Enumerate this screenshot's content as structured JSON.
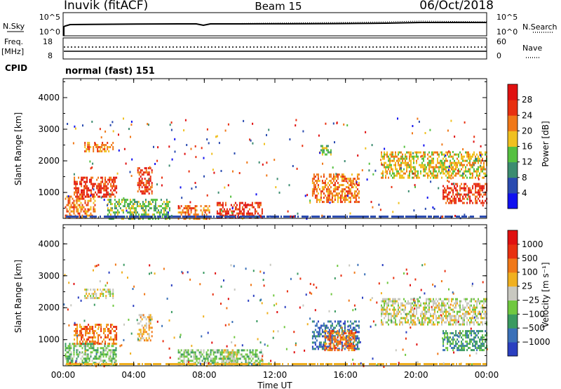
{
  "header": {
    "station": "Inuvik (fitACF)",
    "beam": "Beam 15",
    "date": "06/Oct/2018"
  },
  "nsky": {
    "left_label": "N.Sky",
    "ticks_left": [
      "10^5",
      "10^0"
    ],
    "right_label": "N.Search",
    "ticks_right": [
      "10^5",
      "10^0"
    ]
  },
  "freq": {
    "left_label": "Freq.",
    "unit": "[MHz]",
    "ticks_left": [
      "18",
      "8"
    ],
    "right_label": "Nave",
    "ticks_right": [
      "60",
      "0"
    ]
  },
  "cpid": {
    "label": "CPID",
    "value": "normal (fast) 151"
  },
  "chart_data": [
    {
      "type": "heatmap",
      "ylabel": "Slant Range [km]",
      "ylim": [
        180,
        4600
      ],
      "yticks": [
        "1000",
        "2000",
        "3000",
        "4000"
      ],
      "colorbar_label": "Power [dB]",
      "colorbar_ticks": [
        "4",
        "8",
        "12",
        "16",
        "20",
        "24",
        "28"
      ],
      "colors": [
        "#1010f0",
        "#2a4bb0",
        "#3c8c70",
        "#55c040",
        "#f0c020",
        "#f07818",
        "#e83010",
        "#e01010"
      ],
      "regions": [
        {
          "t0": 0.1,
          "t1": 1.8,
          "r0": 200,
          "r1": 900,
          "level": 5
        },
        {
          "t0": 0.6,
          "t1": 3.0,
          "r0": 900,
          "r1": 1500,
          "level": 6
        },
        {
          "t0": 1.2,
          "t1": 2.8,
          "r0": 2300,
          "r1": 2600,
          "level": 5
        },
        {
          "t0": 4.2,
          "t1": 5.0,
          "r0": 1000,
          "r1": 1800,
          "level": 6
        },
        {
          "t0": 2.5,
          "t1": 6.0,
          "r0": 200,
          "r1": 800,
          "level": 3
        },
        {
          "t0": 6.5,
          "t1": 8.3,
          "r0": 200,
          "r1": 600,
          "level": 5
        },
        {
          "t0": 8.7,
          "t1": 11.3,
          "r0": 200,
          "r1": 700,
          "level": 6
        },
        {
          "t0": 14.1,
          "t1": 16.8,
          "r0": 700,
          "r1": 1600,
          "level": 5
        },
        {
          "t0": 14.5,
          "t1": 15.2,
          "r0": 2200,
          "r1": 2500,
          "level": 3
        },
        {
          "t0": 18.0,
          "t1": 24.0,
          "r0": 1500,
          "r1": 2300,
          "level": 4
        },
        {
          "t0": 21.5,
          "t1": 24.0,
          "r0": 700,
          "r1": 1300,
          "level": 6
        }
      ]
    },
    {
      "type": "heatmap",
      "ylabel": "Slant Range [km]",
      "ylim": [
        180,
        4600
      ],
      "yticks": [
        "1000",
        "2000",
        "3000",
        "4000"
      ],
      "xlabel": "Time UT",
      "xticks": [
        "00:00",
        "04:00",
        "08:00",
        "12:00",
        "16:00",
        "20:00",
        "00:00"
      ],
      "xlim": [
        0,
        24
      ],
      "colorbar_label": "Velocity [m s⁻¹]",
      "colorbar_ticks": [
        "1000",
        "500",
        "100",
        "25",
        "−25",
        "−100",
        "−500",
        "−1000"
      ],
      "colors": [
        "#2a3fc0",
        "#3a70b8",
        "#3a9a60",
        "#70c840",
        "#c8c8c0",
        "#f0b020",
        "#f07818",
        "#e83010",
        "#e01010"
      ],
      "regions": [
        {
          "t0": 0.1,
          "t1": 3.0,
          "r0": 200,
          "r1": 900,
          "level": 3
        },
        {
          "t0": 0.6,
          "t1": 3.0,
          "r0": 900,
          "r1": 1500,
          "level": 6
        },
        {
          "t0": 1.2,
          "t1": 2.8,
          "r0": 2300,
          "r1": 2600,
          "level": 4
        },
        {
          "t0": 4.2,
          "t1": 5.0,
          "r0": 1000,
          "r1": 1800,
          "level": 5
        },
        {
          "t0": 6.5,
          "t1": 11.3,
          "r0": 200,
          "r1": 700,
          "level": 3
        },
        {
          "t0": 9.0,
          "t1": 9.8,
          "r0": 200,
          "r1": 700,
          "level": 4
        },
        {
          "t0": 14.1,
          "t1": 16.8,
          "r0": 700,
          "r1": 1600,
          "level": 1
        },
        {
          "t0": 14.8,
          "t1": 16.5,
          "r0": 700,
          "r1": 1300,
          "level": 6
        },
        {
          "t0": 18.0,
          "t1": 24.0,
          "r0": 1500,
          "r1": 2300,
          "level": 4
        },
        {
          "t0": 21.5,
          "t1": 24.0,
          "r0": 700,
          "r1": 1300,
          "level": 2
        }
      ]
    }
  ]
}
